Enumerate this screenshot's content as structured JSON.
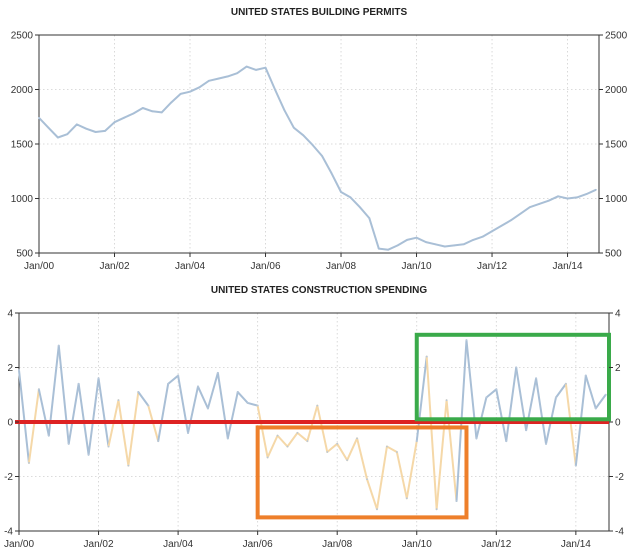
{
  "chart_data": [
    {
      "type": "line",
      "title": "UNITED STATES BUILDING PERMITS",
      "xlabel": "",
      "ylabel": "",
      "x_ticks": [
        "Jan/00",
        "Jan/02",
        "Jan/04",
        "Jan/06",
        "Jan/08",
        "Jan/10",
        "Jan/12",
        "Jan/14"
      ],
      "y_ticks": [
        500,
        1000,
        1500,
        2000,
        2500
      ],
      "xlim": [
        "2000-01",
        "2014-11"
      ],
      "ylim": [
        500,
        2500
      ],
      "grid": true,
      "y_axis": "both sides",
      "colors": {
        "line": "#a9bfd6"
      },
      "series": [
        {
          "x": [
            "2000-01",
            "2000-04",
            "2000-07",
            "2000-10",
            "2001-01",
            "2001-04",
            "2001-07",
            "2001-10",
            "2002-01",
            "2002-04",
            "2002-07",
            "2002-10",
            "2003-01",
            "2003-04",
            "2003-07",
            "2003-10",
            "2004-01",
            "2004-04",
            "2004-07",
            "2004-10",
            "2005-01",
            "2005-04",
            "2005-07",
            "2005-10",
            "2006-01",
            "2006-04",
            "2006-07",
            "2006-10",
            "2007-01",
            "2007-04",
            "2007-07",
            "2007-10",
            "2008-01",
            "2008-04",
            "2008-07",
            "2008-10",
            "2009-01",
            "2009-04",
            "2009-07",
            "2009-10",
            "2010-01",
            "2010-04",
            "2010-07",
            "2010-10",
            "2011-01",
            "2011-04",
            "2011-07",
            "2011-10",
            "2012-01",
            "2012-04",
            "2012-07",
            "2012-10",
            "2013-01",
            "2013-04",
            "2013-07",
            "2013-10",
            "2014-01",
            "2014-04",
            "2014-07",
            "2014-10"
          ],
          "values": [
            1740,
            1650,
            1560,
            1590,
            1680,
            1640,
            1610,
            1620,
            1700,
            1740,
            1780,
            1830,
            1800,
            1790,
            1880,
            1960,
            1980,
            2020,
            2080,
            2100,
            2120,
            2150,
            2210,
            2180,
            2200,
            2000,
            1810,
            1650,
            1580,
            1490,
            1390,
            1230,
            1060,
            1010,
            920,
            820,
            540,
            530,
            570,
            620,
            640,
            600,
            580,
            560,
            570,
            580,
            620,
            650,
            700,
            750,
            800,
            860,
            920,
            950,
            980,
            1020,
            1000,
            1010,
            1040,
            1080
          ]
        }
      ]
    },
    {
      "type": "line",
      "title": "UNITED STATES CONSTRUCTION SPENDING",
      "xlabel": "",
      "ylabel": "",
      "x_ticks": [
        "Jan/00",
        "Jan/02",
        "Jan/04",
        "Jan/06",
        "Jan/08",
        "Jan/10",
        "Jan/12",
        "Jan/14"
      ],
      "y_ticks": [
        -4,
        -2,
        0,
        2,
        4
      ],
      "xlim": [
        "2000-01",
        "2014-11"
      ],
      "ylim": [
        -4,
        4
      ],
      "grid": true,
      "y_axis": "both sides",
      "colors": {
        "positive": "#a9bfd6",
        "negative": "#f5d8a8",
        "zero_line": "#dd2222",
        "box_positive": "#3aaa4a",
        "box_negative": "#ee7f2a"
      },
      "series": [
        {
          "x": [
            "2000-01",
            "2000-04",
            "2000-07",
            "2000-10",
            "2001-01",
            "2001-04",
            "2001-07",
            "2001-10",
            "2002-01",
            "2002-04",
            "2002-07",
            "2002-10",
            "2003-01",
            "2003-04",
            "2003-07",
            "2003-10",
            "2004-01",
            "2004-04",
            "2004-07",
            "2004-10",
            "2005-01",
            "2005-04",
            "2005-07",
            "2005-10",
            "2006-01",
            "2006-04",
            "2006-07",
            "2006-10",
            "2007-01",
            "2007-04",
            "2007-07",
            "2007-10",
            "2008-01",
            "2008-04",
            "2008-07",
            "2008-10",
            "2009-01",
            "2009-04",
            "2009-07",
            "2009-10",
            "2010-01",
            "2010-04",
            "2010-07",
            "2010-10",
            "2011-01",
            "2011-04",
            "2011-07",
            "2011-10",
            "2012-01",
            "2012-04",
            "2012-07",
            "2012-10",
            "2013-01",
            "2013-04",
            "2013-07",
            "2013-10",
            "2014-01",
            "2014-04",
            "2014-07",
            "2014-10"
          ],
          "values": [
            1.9,
            -1.5,
            1.2,
            -0.5,
            2.8,
            -0.8,
            1.4,
            -1.2,
            1.6,
            -0.9,
            0.8,
            -1.6,
            1.1,
            0.6,
            -0.7,
            1.4,
            1.7,
            -0.4,
            1.3,
            0.5,
            1.8,
            -0.6,
            1.1,
            0.7,
            0.6,
            -1.3,
            -0.5,
            -0.9,
            -0.4,
            -0.7,
            0.6,
            -1.1,
            -0.8,
            -1.4,
            -0.6,
            -2.1,
            -3.2,
            -0.9,
            -1.1,
            -2.8,
            -0.7,
            2.4,
            -3.2,
            0.8,
            -2.9,
            3.0,
            -0.6,
            0.9,
            1.2,
            -0.7,
            2.0,
            -0.3,
            1.6,
            -0.8,
            0.9,
            1.4,
            -1.6,
            1.7,
            0.5,
            1.0
          ]
        }
      ],
      "annotations": [
        {
          "shape": "line",
          "y": 0,
          "color": "#dd2222"
        },
        {
          "shape": "rectangle",
          "x_range": [
            "2010-01",
            "2014-11"
          ],
          "y_range": [
            0.1,
            3.2
          ],
          "color": "#3aaa4a"
        },
        {
          "shape": "rectangle",
          "x_range": [
            "2006-01",
            "2011-04"
          ],
          "y_range": [
            -3.5,
            -0.2
          ],
          "color": "#ee7f2a"
        }
      ]
    }
  ]
}
